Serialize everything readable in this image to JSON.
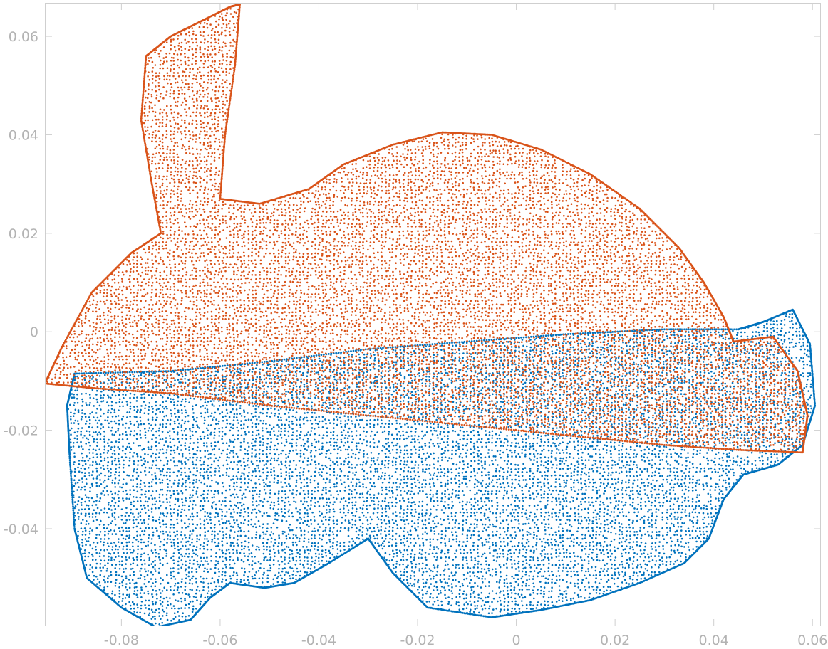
{
  "chart_data": {
    "type": "scatter",
    "title": "",
    "xlabel": "",
    "ylabel": "",
    "xlim": [
      -0.0955,
      0.0617
    ],
    "ylim": [
      -0.0598,
      0.0668
    ],
    "x_ticks": [
      -0.08,
      -0.06,
      -0.04,
      -0.02,
      0,
      0.02,
      0.04,
      0.06
    ],
    "x_tick_labels": [
      "-0.08",
      "-0.06",
      "-0.04",
      "-0.02",
      "0",
      "0.02",
      "0.04",
      "0.06"
    ],
    "y_ticks": [
      -0.04,
      -0.02,
      0,
      0.02,
      0.04,
      0.06
    ],
    "y_tick_labels": [
      "-0.04",
      "-0.02",
      "0",
      "0.02",
      "0.04",
      "0.06"
    ],
    "grid": false,
    "legend": "none",
    "series": [
      {
        "color": "#0072bd",
        "description_points": "bunny point cloud rotated (lower copy)",
        "outline": [
          [
            -0.0895,
            -0.0085
          ],
          [
            -0.07,
            -0.008
          ],
          [
            -0.05,
            -0.006
          ],
          [
            -0.03,
            -0.0035
          ],
          [
            -0.01,
            -0.002
          ],
          [
            0.01,
            -0.0005
          ],
          [
            0.03,
            0.0005
          ],
          [
            0.045,
            0.0005
          ],
          [
            0.05,
            0.002
          ],
          [
            0.056,
            0.0045
          ],
          [
            0.0595,
            -0.0025
          ],
          [
            0.0605,
            -0.015
          ],
          [
            0.058,
            -0.023
          ],
          [
            0.053,
            -0.027
          ],
          [
            0.046,
            -0.029
          ],
          [
            0.042,
            -0.034
          ],
          [
            0.039,
            -0.042
          ],
          [
            0.034,
            -0.047
          ],
          [
            0.025,
            -0.051
          ],
          [
            0.015,
            -0.0545
          ],
          [
            0.005,
            -0.0565
          ],
          [
            -0.005,
            -0.058
          ],
          [
            -0.018,
            -0.056
          ],
          [
            -0.025,
            -0.049
          ],
          [
            -0.03,
            -0.042
          ],
          [
            -0.038,
            -0.047
          ],
          [
            -0.045,
            -0.051
          ],
          [
            -0.051,
            -0.052
          ],
          [
            -0.058,
            -0.051
          ],
          [
            -0.062,
            -0.054
          ],
          [
            -0.066,
            -0.0585
          ],
          [
            -0.073,
            -0.06
          ],
          [
            -0.08,
            -0.056
          ],
          [
            -0.087,
            -0.05
          ],
          [
            -0.0895,
            -0.04
          ],
          [
            -0.0905,
            -0.025
          ],
          [
            -0.091,
            -0.015
          ]
        ]
      },
      {
        "color": "#d95319",
        "description_points": "bunny point cloud original (upper copy)",
        "outline": [
          [
            -0.0955,
            -0.0105
          ],
          [
            -0.092,
            -0.003
          ],
          [
            -0.086,
            0.008
          ],
          [
            -0.078,
            0.016
          ],
          [
            -0.072,
            0.02
          ],
          [
            -0.074,
            0.031
          ],
          [
            -0.076,
            0.043
          ],
          [
            -0.075,
            0.056
          ],
          [
            -0.07,
            0.06
          ],
          [
            -0.064,
            0.063
          ],
          [
            -0.058,
            0.066
          ],
          [
            -0.056,
            0.0665
          ],
          [
            -0.057,
            0.054
          ],
          [
            -0.059,
            0.04
          ],
          [
            -0.06,
            0.027
          ],
          [
            -0.052,
            0.026
          ],
          [
            -0.042,
            0.029
          ],
          [
            -0.035,
            0.034
          ],
          [
            -0.025,
            0.038
          ],
          [
            -0.015,
            0.0405
          ],
          [
            -0.005,
            0.04
          ],
          [
            0.005,
            0.037
          ],
          [
            0.015,
            0.032
          ],
          [
            0.025,
            0.025
          ],
          [
            0.033,
            0.017
          ],
          [
            0.038,
            0.01
          ],
          [
            0.042,
            0.003
          ],
          [
            0.044,
            -0.002
          ],
          [
            0.052,
            -0.001
          ],
          [
            0.057,
            -0.008
          ],
          [
            0.059,
            -0.017
          ],
          [
            0.058,
            -0.0245
          ],
          [
            0.045,
            -0.024
          ],
          [
            0.03,
            -0.023
          ],
          [
            0.01,
            -0.021
          ],
          [
            -0.01,
            -0.019
          ],
          [
            -0.03,
            -0.017
          ],
          [
            -0.05,
            -0.015
          ],
          [
            -0.07,
            -0.0125
          ],
          [
            -0.085,
            -0.0115
          ]
        ]
      }
    ]
  }
}
